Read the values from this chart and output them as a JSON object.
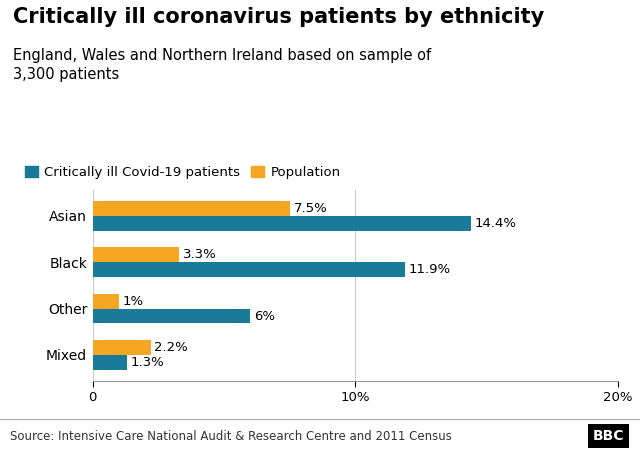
{
  "title": "Critically ill coronavirus patients by ethnicity",
  "subtitle": "England, Wales and Northern Ireland based on sample of\n3,300 patients",
  "categories": [
    "Asian",
    "Black",
    "Other",
    "Mixed"
  ],
  "covid_values": [
    14.4,
    11.9,
    6.0,
    1.3
  ],
  "population_values": [
    7.5,
    3.3,
    1.0,
    2.2
  ],
  "covid_labels": [
    "14.4%",
    "11.9%",
    "6%",
    "1.3%"
  ],
  "pop_labels": [
    "7.5%",
    "3.3%",
    "1%",
    "2.2%"
  ],
  "covid_color": "#1a7a9a",
  "pop_color": "#f5a623",
  "xlim": [
    0,
    20
  ],
  "xticks": [
    0,
    10,
    20
  ],
  "xticklabels": [
    "0",
    "10%",
    "20%"
  ],
  "legend_covid": "Critically ill Covid-19 patients",
  "legend_pop": "Population",
  "source": "Source: Intensive Care National Audit & Research Centre and 2011 Census",
  "background_color": "#ffffff",
  "footer_bg": "#d8d8d8",
  "bar_height": 0.32,
  "title_fontsize": 15,
  "subtitle_fontsize": 10.5,
  "label_fontsize": 9.5,
  "tick_fontsize": 9.5,
  "source_fontsize": 8.5,
  "legend_fontsize": 9.5
}
